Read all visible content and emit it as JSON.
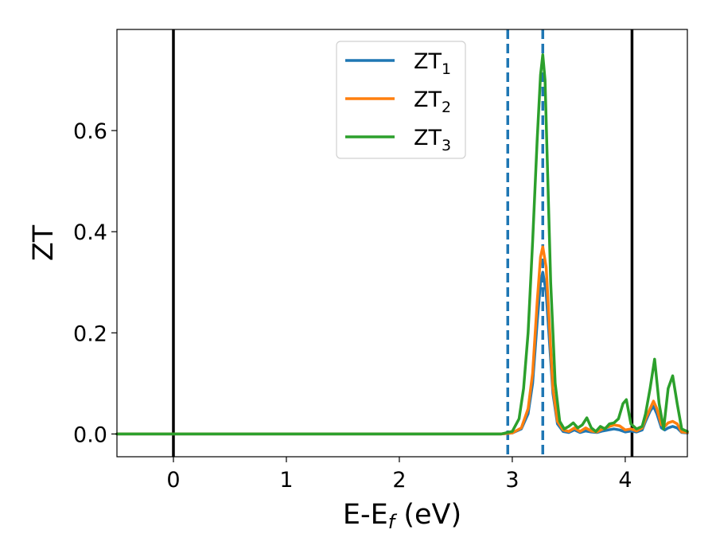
{
  "chart_data": {
    "type": "line",
    "title": "",
    "xlabel": "E-E_f (eV)",
    "xlabel_parts": {
      "main": "E-E",
      "subscript": "f",
      "suffix": " (eV)"
    },
    "ylabel": "ZT",
    "xlim": [
      -0.5,
      4.55
    ],
    "ylim": [
      -0.045,
      0.8
    ],
    "xticks": [
      0,
      1,
      2,
      3,
      4
    ],
    "xtick_labels": [
      "0",
      "1",
      "2",
      "3",
      "4"
    ],
    "yticks": [
      0.0,
      0.2,
      0.4,
      0.6
    ],
    "ytick_labels": [
      "0.0",
      "0.2",
      "0.4",
      "0.6"
    ],
    "grid": false,
    "legend_position": "top-center",
    "reference_lines": [
      {
        "x": 0.0,
        "style": "solid",
        "color": "#000000"
      },
      {
        "x": 4.06,
        "style": "solid",
        "color": "#000000"
      },
      {
        "x": 2.96,
        "style": "dashed",
        "color": "#1f77b4"
      },
      {
        "x": 3.27,
        "style": "dashed",
        "color": "#1f77b4"
      }
    ],
    "series": [
      {
        "name": "ZT_1",
        "label_main": "ZT",
        "label_sub": "1",
        "color": "#1f77b4",
        "x": [
          -0.5,
          2.9,
          3.0,
          3.08,
          3.14,
          3.18,
          3.22,
          3.25,
          3.27,
          3.3,
          3.33,
          3.36,
          3.4,
          3.45,
          3.5,
          3.55,
          3.6,
          3.65,
          3.7,
          3.75,
          3.8,
          3.85,
          3.9,
          3.95,
          4.0,
          4.05,
          4.1,
          4.15,
          4.18,
          4.22,
          4.25,
          4.28,
          4.32,
          4.35,
          4.38,
          4.42,
          4.46,
          4.5,
          4.55
        ],
        "y": [
          0.0,
          0.0,
          0.002,
          0.01,
          0.04,
          0.1,
          0.22,
          0.3,
          0.32,
          0.28,
          0.18,
          0.08,
          0.02,
          0.005,
          0.003,
          0.008,
          0.003,
          0.006,
          0.004,
          0.003,
          0.006,
          0.008,
          0.01,
          0.008,
          0.004,
          0.006,
          0.004,
          0.008,
          0.025,
          0.045,
          0.055,
          0.04,
          0.012,
          0.008,
          0.012,
          0.015,
          0.012,
          0.003,
          0.002
        ]
      },
      {
        "name": "ZT_2",
        "label_main": "ZT",
        "label_sub": "2",
        "color": "#ff7f0e",
        "x": [
          -0.5,
          2.9,
          3.0,
          3.08,
          3.14,
          3.18,
          3.22,
          3.25,
          3.27,
          3.3,
          3.33,
          3.36,
          3.4,
          3.45,
          3.5,
          3.55,
          3.6,
          3.65,
          3.7,
          3.75,
          3.8,
          3.85,
          3.9,
          3.95,
          4.0,
          4.05,
          4.1,
          4.15,
          4.18,
          4.22,
          4.25,
          4.28,
          4.32,
          4.35,
          4.38,
          4.42,
          4.46,
          4.5,
          4.55
        ],
        "y": [
          0.0,
          0.0,
          0.002,
          0.012,
          0.05,
          0.12,
          0.26,
          0.35,
          0.37,
          0.33,
          0.21,
          0.09,
          0.025,
          0.008,
          0.005,
          0.012,
          0.005,
          0.012,
          0.006,
          0.004,
          0.01,
          0.014,
          0.018,
          0.016,
          0.008,
          0.01,
          0.006,
          0.012,
          0.03,
          0.05,
          0.065,
          0.05,
          0.018,
          0.015,
          0.022,
          0.025,
          0.02,
          0.004,
          0.003
        ]
      },
      {
        "name": "ZT_3",
        "label_main": "ZT",
        "label_sub": "3",
        "color": "#2ca02c",
        "x": [
          -0.5,
          2.9,
          3.0,
          3.06,
          3.1,
          3.14,
          3.18,
          3.22,
          3.25,
          3.27,
          3.29,
          3.31,
          3.34,
          3.38,
          3.42,
          3.46,
          3.5,
          3.54,
          3.58,
          3.62,
          3.66,
          3.7,
          3.74,
          3.78,
          3.82,
          3.86,
          3.9,
          3.94,
          3.98,
          4.01,
          4.05,
          4.1,
          4.15,
          4.18,
          4.22,
          4.26,
          4.3,
          4.34,
          4.38,
          4.42,
          4.46,
          4.5,
          4.55
        ],
        "y": [
          0.0,
          0.0,
          0.005,
          0.03,
          0.09,
          0.2,
          0.38,
          0.58,
          0.71,
          0.75,
          0.7,
          0.54,
          0.3,
          0.1,
          0.025,
          0.01,
          0.015,
          0.022,
          0.012,
          0.018,
          0.032,
          0.012,
          0.005,
          0.015,
          0.01,
          0.02,
          0.022,
          0.03,
          0.06,
          0.068,
          0.02,
          0.01,
          0.015,
          0.04,
          0.09,
          0.148,
          0.06,
          0.01,
          0.09,
          0.115,
          0.06,
          0.01,
          0.005
        ]
      }
    ]
  }
}
